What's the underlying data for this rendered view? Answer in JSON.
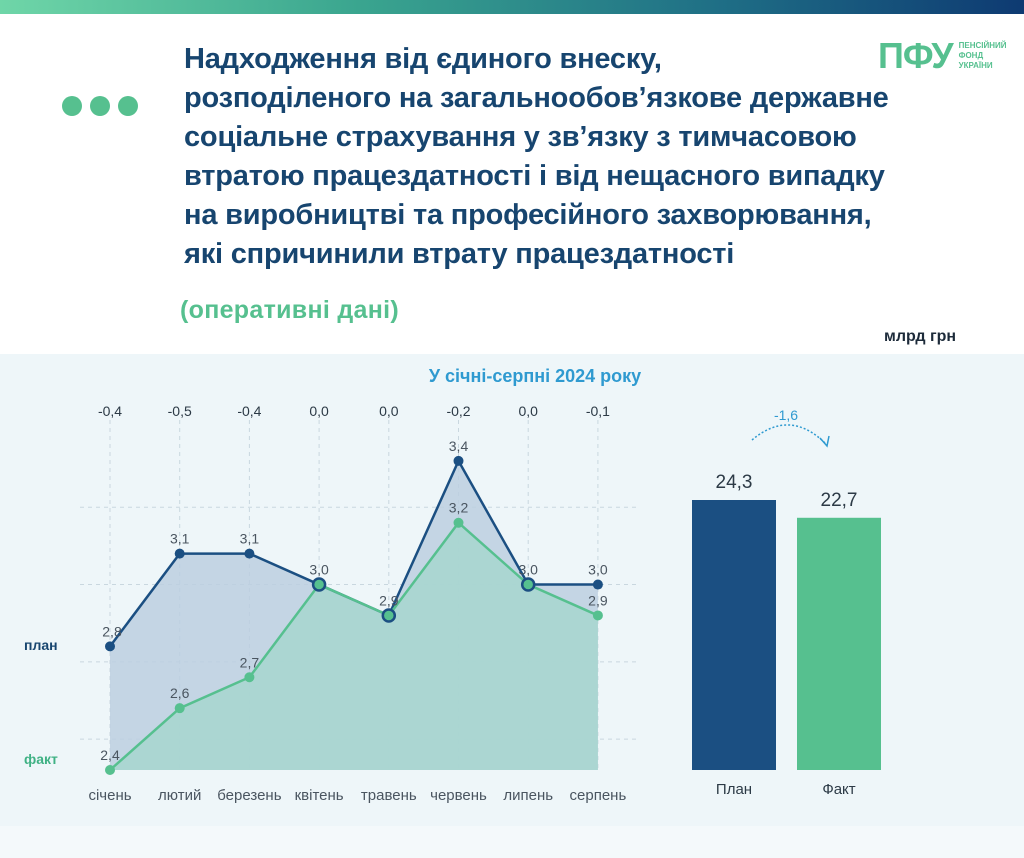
{
  "header": {
    "title": "Надходження від єдиного внеску,\nрозподіленого на загальнообов’язкове державне\nсоціальне страхування у зв’язку з тимчасовою\nвтратою працездатності і від нещасного випадку\nна виробництві та професійного захворювання,\nякі спричинили втрату працездатності",
    "subtitle": "(оперативні дані)",
    "unit": "млрд грн",
    "period": "У січні-серпні 2024 року"
  },
  "logo": {
    "mark": "ПФУ",
    "text": "ПЕНСІЙНИЙ\nФОНД\nУКРАЇНИ"
  },
  "colors": {
    "plan": "#1b4f82",
    "fact": "#56c08f",
    "title": "#17456f",
    "panel": "#eef6f9"
  },
  "chart_data": [
    {
      "type": "line",
      "categories": [
        "січень",
        "лютий",
        "березень",
        "квітень",
        "травень",
        "червень",
        "липень",
        "серпень"
      ],
      "series": [
        {
          "name": "план",
          "values": [
            2.8,
            3.1,
            3.1,
            3.0,
            2.9,
            3.4,
            3.0,
            3.0
          ]
        },
        {
          "name": "факт",
          "values": [
            2.4,
            2.6,
            2.7,
            3.0,
            2.9,
            3.2,
            3.0,
            2.9
          ]
        }
      ],
      "value_labels": {
        "plan": [
          "2,8",
          "3,1",
          "3,1",
          "3,0",
          "2,9",
          "3,4",
          "3,0",
          "3,0"
        ],
        "fact": [
          "2,4",
          "2,6",
          "2,7",
          "3,0",
          "2,9",
          "3,2",
          "3,0",
          "2,9"
        ]
      },
      "differences": [
        "-0,4",
        "-0,5",
        "-0,4",
        "0,0",
        "0,0",
        "-0,2",
        "0,0",
        "-0,1"
      ],
      "ylim": [
        2.4,
        3.5
      ],
      "grid": true,
      "legend": "left"
    },
    {
      "type": "bar",
      "categories": [
        "План",
        "Факт"
      ],
      "values": [
        24.3,
        22.7
      ],
      "value_labels": [
        "24,3",
        "22,7"
      ],
      "difference": "-1,6",
      "ylim": [
        0,
        30.6
      ]
    }
  ]
}
